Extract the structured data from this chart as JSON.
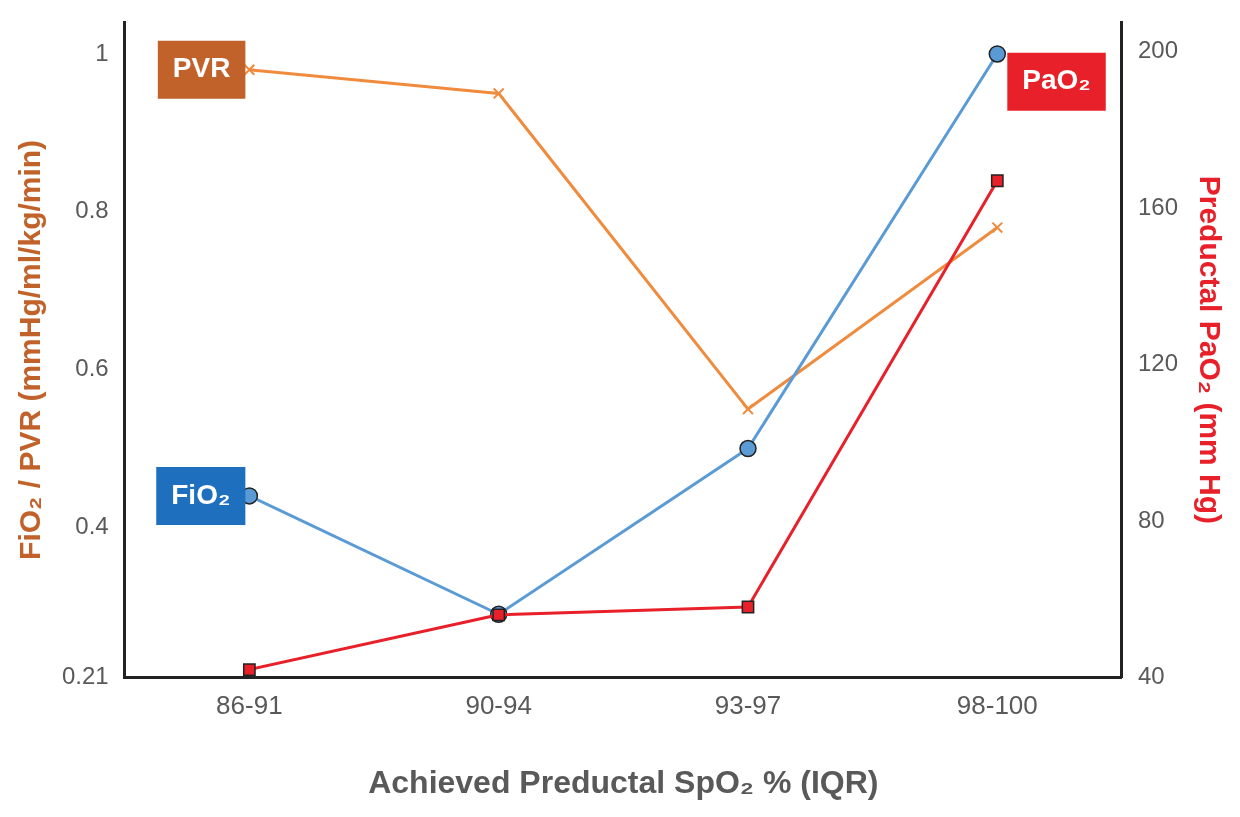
{
  "chart_data": {
    "type": "line",
    "categories": [
      "86-91",
      "90-94",
      "93-97",
      "98-100"
    ],
    "xlabel": "Achieved Preductal SpO₂ % (IQR)",
    "ylabel": "FiO₂ / PVR (mmHg/ml/kg/min)",
    "y2label": "Preductal PaO₂ (mm Hg)",
    "ylim": [
      0.21,
      1.04
    ],
    "yticks": [
      0.21,
      0.4,
      0.6,
      0.8,
      1
    ],
    "y2lim": [
      40,
      207.5
    ],
    "y2ticks": [
      40,
      80,
      120,
      160,
      200
    ],
    "grid": false,
    "legend": false,
    "series": [
      {
        "name": "PVR",
        "color": "#f08a3c",
        "marker": "cross",
        "values": [
          0.98,
          0.95,
          0.55,
          0.78
        ]
      },
      {
        "name": "FiO₂",
        "color": "#5b9bd5",
        "marker": "circle",
        "values": [
          0.44,
          0.29,
          0.5,
          1
        ]
      },
      {
        "name": "PaO₂",
        "color": "#e8202a",
        "marker": "square",
        "axis": "y2",
        "values": [
          42,
          56,
          58,
          167
        ]
      }
    ]
  }
}
